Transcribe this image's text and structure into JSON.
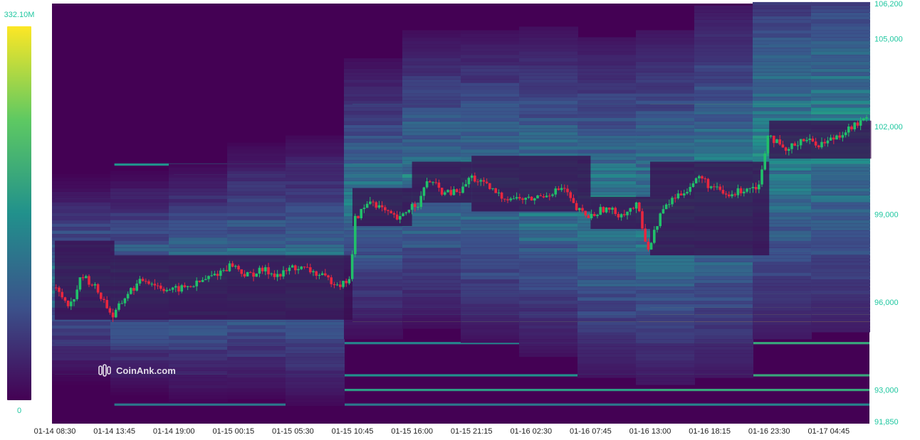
{
  "watermark": "CoinAnk.com",
  "colorbar": {
    "max_label": "332.10M",
    "min_label": "0",
    "min": 0,
    "max": 332.1
  },
  "chart_data": {
    "type": "heatmap",
    "title": "",
    "xlabel": "",
    "ylabel": "",
    "ylim": [
      91850,
      106200
    ],
    "x_tick_labels": [
      "01-14 08:30",
      "01-14 13:45",
      "01-14 19:00",
      "01-15 00:15",
      "01-15 05:30",
      "01-15 10:45",
      "01-15 16:00",
      "01-15 21:15",
      "01-16 02:30",
      "01-16 07:45",
      "01-16 13:00",
      "01-16 18:15",
      "01-16 23:30",
      "01-17 04:45"
    ],
    "y_tick_values": [
      106200,
      105000,
      102000,
      99000,
      96000,
      93000,
      91850
    ],
    "y_tick_labels": [
      "106,200",
      "105,000",
      "102,000",
      "99,000",
      "96,000",
      "93,000",
      "91,850"
    ],
    "price_path": [
      [
        "01-14 08:30",
        96500
      ],
      [
        "01-14 10:00",
        95900
      ],
      [
        "01-14 11:00",
        96900
      ],
      [
        "01-14 12:00",
        96600
      ],
      [
        "01-14 13:00",
        96000
      ],
      [
        "01-14 13:45",
        95500
      ],
      [
        "01-14 15:00",
        96300
      ],
      [
        "01-14 16:30",
        96800
      ],
      [
        "01-14 18:00",
        96500
      ],
      [
        "01-14 19:00",
        96400
      ],
      [
        "01-14 21:00",
        96600
      ],
      [
        "01-14 23:00",
        97000
      ],
      [
        "01-15 00:15",
        97300
      ],
      [
        "01-15 01:30",
        96900
      ],
      [
        "01-15 03:00",
        97100
      ],
      [
        "01-15 04:30",
        96900
      ],
      [
        "01-15 05:30",
        97200
      ],
      [
        "01-15 07:00",
        97100
      ],
      [
        "01-15 08:30",
        96800
      ],
      [
        "01-15 10:00",
        96600
      ],
      [
        "01-15 10:45",
        96900
      ],
      [
        "01-15 11:00",
        98800
      ],
      [
        "01-15 12:30",
        99500
      ],
      [
        "01-15 14:00",
        99000
      ],
      [
        "01-15 15:00",
        98800
      ],
      [
        "01-15 16:00",
        99300
      ],
      [
        "01-15 16:45",
        99400
      ],
      [
        "01-15 17:30",
        100200
      ],
      [
        "01-15 19:00",
        99700
      ],
      [
        "01-15 20:30",
        99800
      ],
      [
        "01-15 21:15",
        100300
      ],
      [
        "01-15 22:30",
        100000
      ],
      [
        "01-16 00:00",
        99600
      ],
      [
        "01-16 02:30",
        99500
      ],
      [
        "01-16 04:00",
        99700
      ],
      [
        "01-16 05:30",
        99900
      ],
      [
        "01-16 06:30",
        99200
      ],
      [
        "01-16 07:45",
        98900
      ],
      [
        "01-16 09:00",
        99200
      ],
      [
        "01-16 10:30",
        99000
      ],
      [
        "01-16 12:00",
        99300
      ],
      [
        "01-16 12:30",
        98400
      ],
      [
        "01-16 13:00",
        97800
      ],
      [
        "01-16 14:00",
        99000
      ],
      [
        "01-16 15:00",
        99500
      ],
      [
        "01-16 16:30",
        99900
      ],
      [
        "01-16 17:30",
        100300
      ],
      [
        "01-16 18:15",
        100000
      ],
      [
        "01-16 20:00",
        99600
      ],
      [
        "01-16 21:30",
        99900
      ],
      [
        "01-16 22:45",
        100000
      ],
      [
        "01-16 23:30",
        101800
      ],
      [
        "01-17 01:00",
        101100
      ],
      [
        "01-17 02:30",
        101600
      ],
      [
        "01-17 04:00",
        101400
      ],
      [
        "01-17 04:45",
        101500
      ],
      [
        "01-17 06:30",
        101900
      ],
      [
        "01-17 08:30",
        102300
      ]
    ],
    "liquidity_bands": [
      {
        "price": 95300,
        "from": "01-15 10:45",
        "intensity": 0.82,
        "peak_from": "01-16 12:00",
        "peak": 1.0
      },
      {
        "price": 95600,
        "from": "01-14 08:30",
        "intensity": 0.55,
        "peak_from": "01-16 13:00",
        "peak": 0.9
      },
      {
        "price": 96000,
        "from": "01-14 08:30",
        "intensity": 0.5,
        "peak_from": "01-16 13:00",
        "peak": 0.95
      },
      {
        "price": 95800,
        "from": "01-14 08:30",
        "intensity": 0.45,
        "peak_from": "01-16 13:00",
        "peak": 0.85
      },
      {
        "price": 96300,
        "from": "01-14 13:45",
        "intensity": 0.45,
        "peak_from": "01-16 13:00",
        "peak": 0.7
      },
      {
        "price": 100700,
        "from": "01-14 13:45",
        "intensity": 0.5,
        "peak_from": "01-15 10:45",
        "peak": 0.65
      },
      {
        "price": 100400,
        "from": "01-14 19:00",
        "intensity": 0.55,
        "peak_from": "01-15 10:45",
        "peak": 0.75
      },
      {
        "price": 101200,
        "from": "01-15 16:00",
        "intensity": 0.55,
        "peak_from": "01-16 13:00",
        "peak": 1.0
      },
      {
        "price": 102800,
        "from": "01-15 10:45",
        "intensity": 0.45,
        "peak_from": "01-16 13:00",
        "peak": 0.75
      },
      {
        "price": 103300,
        "from": "01-15 16:00",
        "intensity": 0.4,
        "peak_from": "01-16 23:30",
        "peak": 0.65
      },
      {
        "price": 103800,
        "from": "01-15 21:15",
        "intensity": 0.35,
        "peak_from": "01-16 23:30",
        "peak": 0.55
      },
      {
        "price": 104800,
        "from": "01-16 23:30",
        "intensity": 0.3,
        "peak_from": "01-17 04:45",
        "peak": 0.4
      },
      {
        "price": 98500,
        "from": "01-14 08:30",
        "intensity": 0.4,
        "peak_from": "01-16 13:00",
        "peak": 0.5
      },
      {
        "price": 97700,
        "from": "01-15 10:45",
        "intensity": 0.4,
        "peak_from": "01-16 13:00",
        "peak": 0.55
      },
      {
        "price": 94600,
        "from": "01-14 08:30",
        "intensity": 0.45,
        "peak_from": "01-16 13:00",
        "peak": 0.6
      },
      {
        "price": 93500,
        "from": "01-14 08:30",
        "intensity": 0.5,
        "peak_from": "01-16 13:00",
        "peak": 0.6
      },
      {
        "price": 93000,
        "from": "01-14 13:45",
        "intensity": 0.55,
        "peak_from": "01-16 13:00",
        "peak": 0.6
      },
      {
        "price": 92500,
        "from": "01-14 13:45",
        "intensity": 0.4,
        "peak_from": "01-16 13:00",
        "peak": 0.45
      },
      {
        "price": 99500,
        "from": "01-14 08:30",
        "intensity": 0.3,
        "peak_from": "01-16 13:00",
        "peak": 0.45
      },
      {
        "price": 101700,
        "from": "01-16 13:00",
        "intensity": 0.4,
        "peak_from": "01-16 23:30",
        "peak": 0.55
      }
    ],
    "colors": {
      "low": "#440154",
      "mid": "#21918c",
      "high": "#fde725",
      "up": "#21c06a",
      "down": "#e8273f"
    }
  }
}
